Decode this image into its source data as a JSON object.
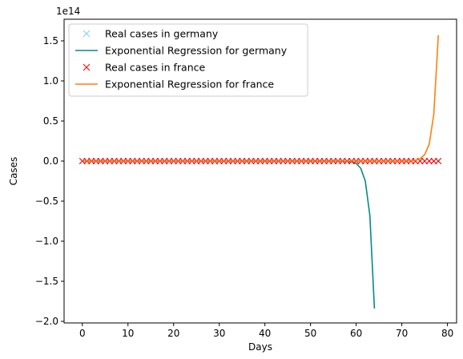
{
  "chart_data": {
    "type": "line",
    "xlabel": "Days",
    "ylabel": "Cases",
    "y_offset_text": "1e14",
    "xlim": [
      -4,
      82
    ],
    "ylim": [
      -2.02,
      1.77
    ],
    "y_scale_factor": 100000000000000.0,
    "xticks": [
      0,
      10,
      20,
      30,
      40,
      50,
      60,
      70,
      80
    ],
    "yticks": [
      -2.0,
      -1.5,
      -1.0,
      -0.5,
      0.0,
      0.5,
      1.0,
      1.5
    ],
    "ytick_labels": [
      "−2.0",
      "−1.5",
      "−1.0",
      "−0.5",
      "0.0",
      "0.5",
      "1.0",
      "1.5"
    ],
    "grid": false,
    "legend_position": "top-left",
    "series": [
      {
        "name": "Real cases in germany",
        "kind": "marker",
        "marker": "x",
        "color": "#87CEEB",
        "x": [
          0,
          1,
          2,
          3,
          4,
          5,
          6,
          7,
          8,
          9,
          10,
          11,
          12,
          13,
          14,
          15,
          16,
          17,
          18,
          19,
          20,
          21,
          22,
          23,
          24,
          25,
          26,
          27,
          28,
          29,
          30,
          31,
          32,
          33,
          34,
          35,
          36,
          37,
          38,
          39,
          40,
          41,
          42,
          43,
          44,
          45,
          46,
          47,
          48,
          49,
          50,
          51,
          52,
          53,
          54,
          55,
          56,
          57,
          58,
          59,
          60,
          61,
          62,
          63,
          64,
          65,
          66,
          67,
          68,
          69,
          70,
          71,
          72,
          73,
          74,
          75,
          76,
          77,
          78
        ],
        "y_value": 0
      },
      {
        "name": "Exponential Regression for germany",
        "kind": "line",
        "color": "#008B8B",
        "x": [
          0,
          55,
          58,
          59,
          60,
          61,
          62,
          63,
          64
        ],
        "y": [
          0,
          0,
          -0.005,
          -0.01,
          -0.03,
          -0.09,
          -0.25,
          -0.68,
          -1.84
        ]
      },
      {
        "name": "Real cases in france",
        "kind": "marker",
        "marker": "x",
        "color": "#FF0000",
        "x": [
          0,
          1,
          2,
          3,
          4,
          5,
          6,
          7,
          8,
          9,
          10,
          11,
          12,
          13,
          14,
          15,
          16,
          17,
          18,
          19,
          20,
          21,
          22,
          23,
          24,
          25,
          26,
          27,
          28,
          29,
          30,
          31,
          32,
          33,
          34,
          35,
          36,
          37,
          38,
          39,
          40,
          41,
          42,
          43,
          44,
          45,
          46,
          47,
          48,
          49,
          50,
          51,
          52,
          53,
          54,
          55,
          56,
          57,
          58,
          59,
          60,
          61,
          62,
          63,
          64,
          65,
          66,
          67,
          68,
          69,
          70,
          71,
          72,
          73,
          74,
          75,
          76,
          77,
          78
        ],
        "y_value": 0
      },
      {
        "name": "Exponential Regression for france",
        "kind": "line",
        "color": "#FF7F0E",
        "x": [
          0,
          70,
          72,
          73,
          74,
          75,
          76,
          77,
          78
        ],
        "y": [
          0,
          0,
          0.005,
          0.01,
          0.03,
          0.08,
          0.21,
          0.58,
          1.57
        ]
      }
    ]
  }
}
